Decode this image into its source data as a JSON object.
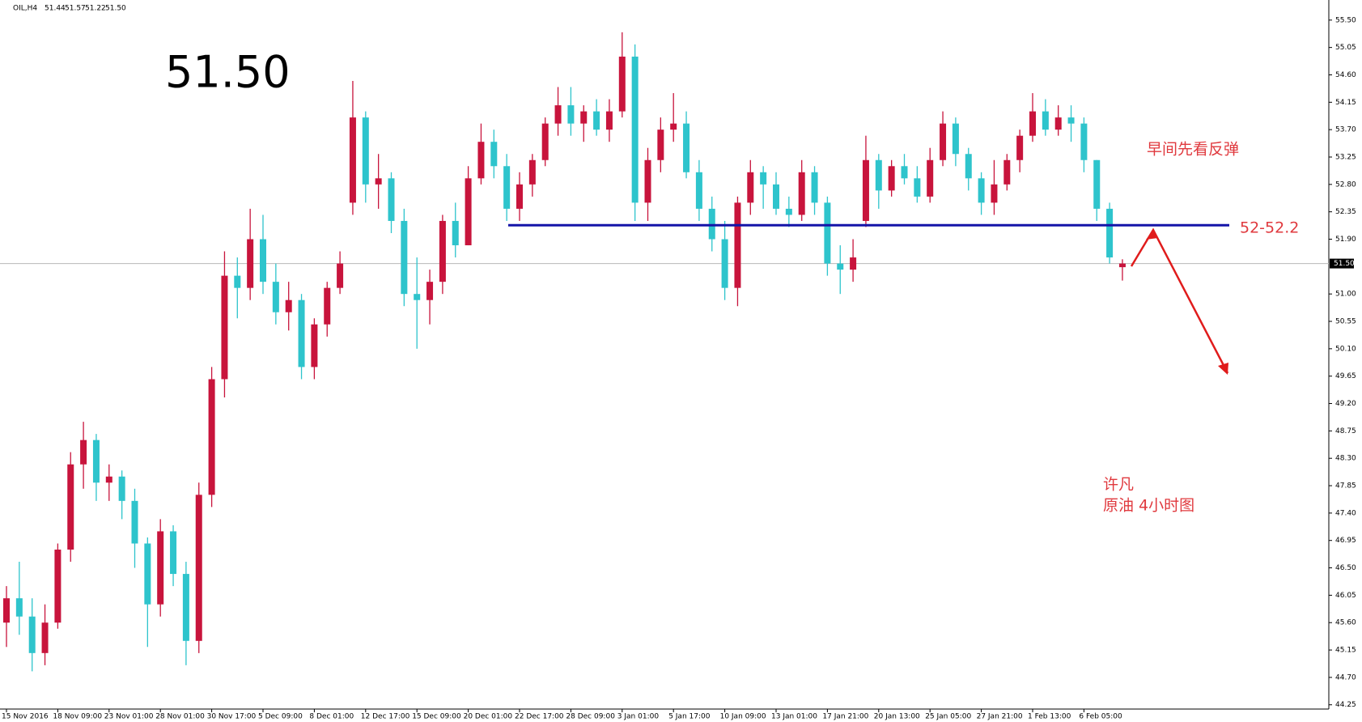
{
  "chart_data": {
    "type": "candlestick",
    "header": {
      "symbol": "OIL,H4",
      "ohlc": [
        "51.44",
        "51.57",
        "51.22",
        "51.50"
      ]
    },
    "current_price": {
      "value": 51.5,
      "label": "51.50"
    },
    "support_line": 52.13,
    "annotations": {
      "support_label": "52-52.2",
      "note": "早间先看反弹",
      "author": "许凡",
      "caption": "原油 4小时图"
    },
    "up_color": "#c8143c",
    "down_color": "#2ec4cc",
    "support_color": "#1414a8",
    "arrow_color": "#e01c1c",
    "categories": [
      "15 Nov 2016",
      null,
      null,
      null,
      "18 Nov 09:00",
      null,
      null,
      null,
      "23 Nov 01:00",
      null,
      null,
      null,
      "28 Nov 01:00",
      null,
      null,
      null,
      "30 Nov 17:00",
      null,
      null,
      null,
      "5 Dec 09:00",
      null,
      null,
      null,
      "8 Dec 01:00",
      null,
      null,
      null,
      "12 Dec 17:00",
      null,
      null,
      null,
      "15 Dec 09:00",
      null,
      null,
      null,
      "20 Dec 01:00",
      null,
      null,
      null,
      "22 Dec 17:00",
      null,
      null,
      null,
      "28 Dec 09:00",
      null,
      null,
      null,
      "3 Jan 01:00",
      null,
      null,
      null,
      "5 Jan 17:00",
      null,
      null,
      null,
      "10 Jan 09:00",
      null,
      null,
      null,
      "13 Jan 01:00",
      null,
      null,
      null,
      "17 Jan 21:00",
      null,
      null,
      null,
      "20 Jan 13:00",
      null,
      null,
      null,
      "25 Jan 05:00",
      null,
      null,
      null,
      "27 Jan 21:00",
      null,
      null,
      null,
      "1 Feb 13:00",
      null,
      null,
      null,
      "6 Feb 05:00",
      null,
      null,
      null
    ],
    "open": [
      45.6,
      46.0,
      45.7,
      45.1,
      45.6,
      46.8,
      48.2,
      48.6,
      47.9,
      48.0,
      47.6,
      46.9,
      45.9,
      47.1,
      46.4,
      45.3,
      47.7,
      49.6,
      51.3,
      51.1,
      51.9,
      51.2,
      50.7,
      50.9,
      49.8,
      50.5,
      51.1,
      52.5,
      53.9,
      52.8,
      52.9,
      52.2,
      51.0,
      50.9,
      51.2,
      52.2,
      51.8,
      52.9,
      53.5,
      53.1,
      52.4,
      52.8,
      53.2,
      53.8,
      54.1,
      53.8,
      54.0,
      53.7,
      54.0,
      54.9,
      52.5,
      53.2,
      53.7,
      53.8,
      53.0,
      52.4,
      51.9,
      51.1,
      52.5,
      53.0,
      52.8,
      52.4,
      52.3,
      53.0,
      52.5,
      51.5,
      51.4,
      52.2,
      53.2,
      52.7,
      53.1,
      52.9,
      52.6,
      53.2,
      53.8,
      53.3,
      52.9,
      52.5,
      52.8,
      53.2,
      53.6,
      54.0,
      53.7,
      53.9,
      53.8,
      53.2,
      52.4,
      51.44
    ],
    "high": [
      46.2,
      46.6,
      46.0,
      45.9,
      46.9,
      48.4,
      48.9,
      48.7,
      48.2,
      48.1,
      47.8,
      47.0,
      47.3,
      47.2,
      46.6,
      47.9,
      49.8,
      51.7,
      51.6,
      52.4,
      52.3,
      51.5,
      51.2,
      51.0,
      50.6,
      51.2,
      51.7,
      54.5,
      54.0,
      53.3,
      53.0,
      52.4,
      51.6,
      51.4,
      52.3,
      52.5,
      53.1,
      53.8,
      53.7,
      53.3,
      53.0,
      53.3,
      53.9,
      54.4,
      54.4,
      54.1,
      54.2,
      54.2,
      55.3,
      55.1,
      53.4,
      53.9,
      54.3,
      54.0,
      53.2,
      52.6,
      52.2,
      52.6,
      53.2,
      53.1,
      53.0,
      52.6,
      53.2,
      53.1,
      52.6,
      51.8,
      51.9,
      53.6,
      53.3,
      53.2,
      53.3,
      53.1,
      53.4,
      54.0,
      53.9,
      53.4,
      53.0,
      53.2,
      53.3,
      53.7,
      54.3,
      54.2,
      54.1,
      54.1,
      53.9,
      53.2,
      52.5,
      51.57
    ],
    "low": [
      45.2,
      45.4,
      44.8,
      44.9,
      45.5,
      46.6,
      47.8,
      47.6,
      47.6,
      47.3,
      46.5,
      45.2,
      45.7,
      46.2,
      44.9,
      45.1,
      47.5,
      49.3,
      50.6,
      50.9,
      51.0,
      50.5,
      50.4,
      49.6,
      49.6,
      50.3,
      51.0,
      52.3,
      52.5,
      52.4,
      52.0,
      50.8,
      50.1,
      50.5,
      51.0,
      51.6,
      51.8,
      52.8,
      52.9,
      52.2,
      52.2,
      52.6,
      53.1,
      53.6,
      53.6,
      53.5,
      53.6,
      53.5,
      53.9,
      52.2,
      52.2,
      53.0,
      53.5,
      52.9,
      52.2,
      51.7,
      50.9,
      50.8,
      52.3,
      52.4,
      52.3,
      52.1,
      52.2,
      52.3,
      51.3,
      51.0,
      51.2,
      52.1,
      52.4,
      52.6,
      52.8,
      52.5,
      52.5,
      53.1,
      53.1,
      52.7,
      52.3,
      52.3,
      52.7,
      53.0,
      53.5,
      53.6,
      53.6,
      53.5,
      53.0,
      52.2,
      51.5,
      51.22
    ],
    "close": [
      46.0,
      45.7,
      45.1,
      45.6,
      46.8,
      48.2,
      48.6,
      47.9,
      48.0,
      47.6,
      46.9,
      45.9,
      47.1,
      46.4,
      45.3,
      47.7,
      49.6,
      51.3,
      51.1,
      51.9,
      51.2,
      50.7,
      50.9,
      49.8,
      50.5,
      51.1,
      51.5,
      53.9,
      52.8,
      52.9,
      52.2,
      51.0,
      50.9,
      51.2,
      52.2,
      51.8,
      52.9,
      53.5,
      53.1,
      52.4,
      52.8,
      53.2,
      53.8,
      54.1,
      53.8,
      54.0,
      53.7,
      54.0,
      54.9,
      52.5,
      53.2,
      53.7,
      53.8,
      53.0,
      52.4,
      51.9,
      51.1,
      52.5,
      53.0,
      52.8,
      52.4,
      52.3,
      53.0,
      52.5,
      51.5,
      51.4,
      51.6,
      53.2,
      52.7,
      53.1,
      52.9,
      52.6,
      53.2,
      53.8,
      53.3,
      52.9,
      52.5,
      52.8,
      53.2,
      53.6,
      54.0,
      53.7,
      53.9,
      53.8,
      53.2,
      52.4,
      51.6,
      51.5
    ],
    "ylim": [
      44.18,
      55.83
    ],
    "yticks": [
      {
        "value": 55.5,
        "label": "55.50"
      },
      55.05,
      {
        "value": 54.6,
        "label": "54.60"
      },
      54.15,
      {
        "value": 53.7,
        "label": "53.70"
      },
      53.25,
      {
        "value": 52.8,
        "label": "52.80"
      },
      52.35,
      {
        "value": 51.9,
        "label": "51.90"
      },
      {
        "value": 51.0,
        "label": "51.00"
      },
      50.55,
      {
        "value": 50.1,
        "label": "50.10"
      },
      49.65,
      {
        "value": 49.2,
        "label": "49.20"
      },
      48.75,
      {
        "value": 48.3,
        "label": "48.30"
      },
      47.85,
      {
        "value": 47.4,
        "label": "47.40"
      },
      46.95,
      {
        "value": 46.5,
        "label": "46.50"
      },
      46.05,
      {
        "value": 45.6,
        "label": "45.60"
      },
      45.15,
      {
        "value": 44.7,
        "label": "44.70"
      },
      44.25
    ]
  }
}
